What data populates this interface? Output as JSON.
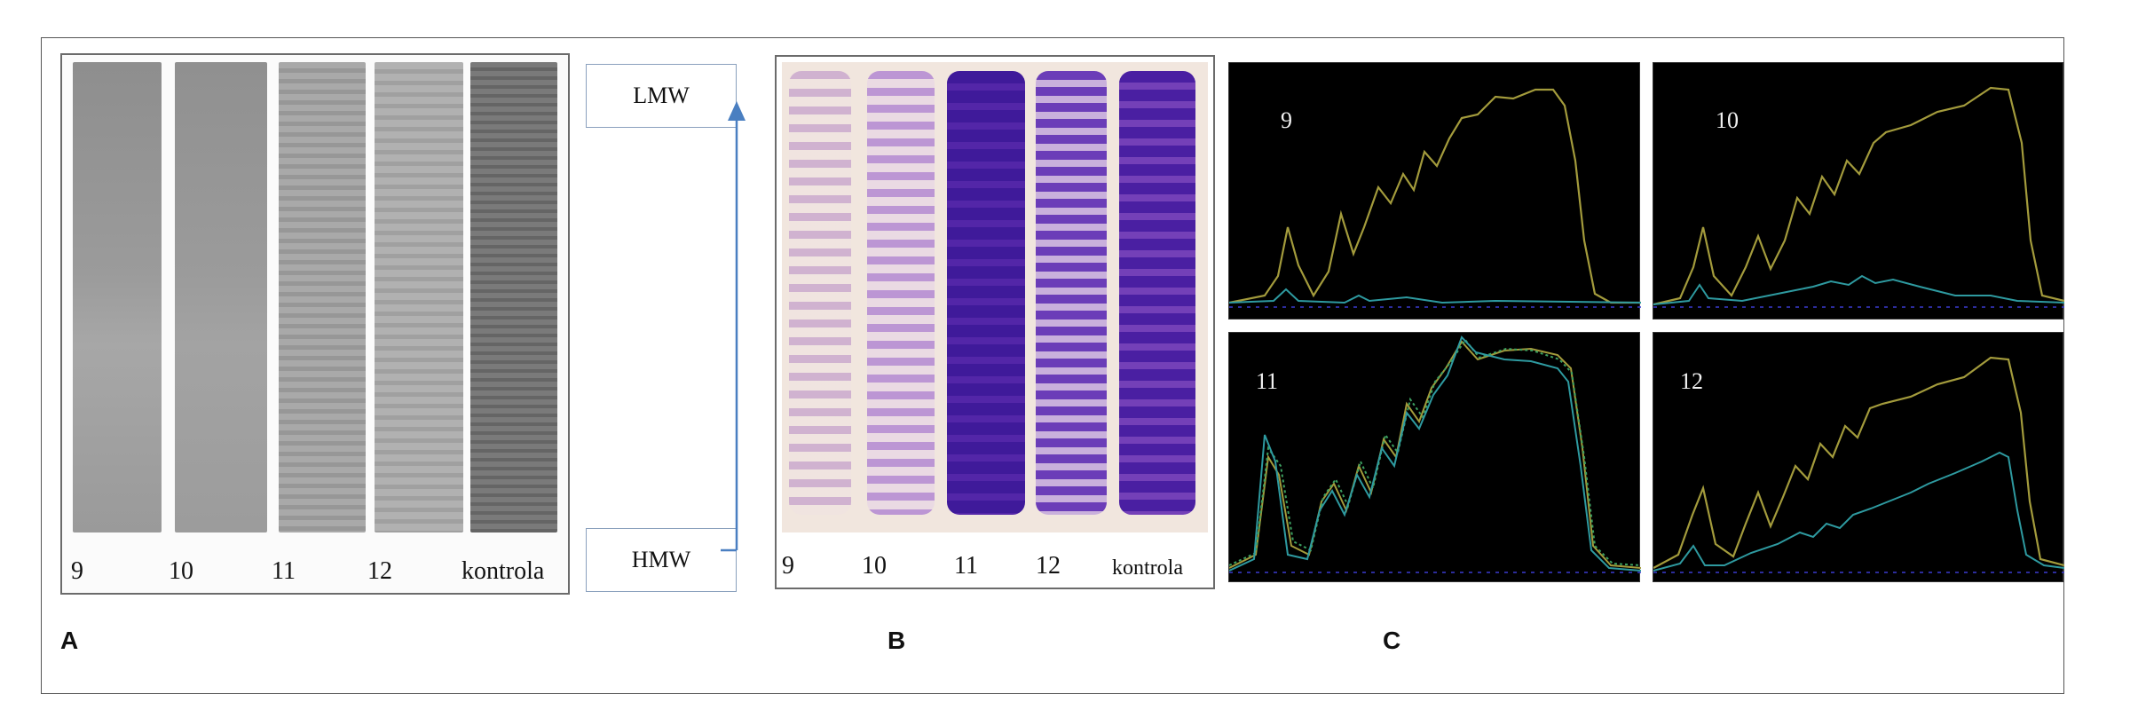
{
  "panel_letters": {
    "a": "A",
    "b": "B",
    "c": "C"
  },
  "panel_a": {
    "lanes": [
      "9",
      "10",
      "11",
      "12",
      "kontrola"
    ]
  },
  "markers": {
    "top": "LMW",
    "bottom": "HMW"
  },
  "panel_b": {
    "lanes": [
      "9",
      "10",
      "11",
      "12",
      "kontrola"
    ]
  },
  "panel_c": {
    "plots": [
      "9",
      "10",
      "11",
      "12"
    ]
  },
  "colors": {
    "trace_olive": "#a39b3c",
    "trace_teal": "#2e9aa0",
    "trace_green": "#3ca060",
    "trace_base": "#3a3ad0",
    "arrow_blue": "#4a7fc1",
    "stain_purple": "#3f1a9a"
  }
}
